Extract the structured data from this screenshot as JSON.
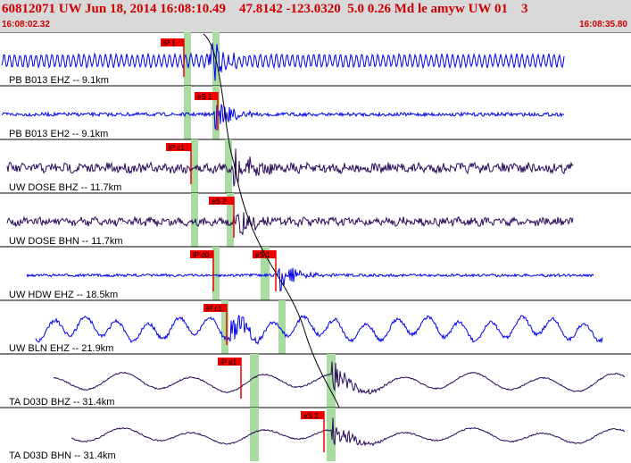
{
  "header": {
    "title": "60812071 UW Jun 18, 2014 16:08:10.49    47.8142 -123.0320  5.0 0.26 Md le amyw UW 01    3",
    "time_start": "16:08:02.32",
    "time_end": "16:08:35.80"
  },
  "colors": {
    "trace_blue": "#0000ee",
    "trace_dark": "#2a0a5a",
    "pick_red": "#ee0000",
    "window_green": "#a8dca0",
    "header_bg": "#d9d9d9",
    "header_text": "#cc0000"
  },
  "channels": [
    {
      "label": "PB B013 EHZ -- 9.1km",
      "color": "blue",
      "picks": [
        {
          "label": "iP 1"
        }
      ]
    },
    {
      "label": "PB B013 EH2 -- 9.1km",
      "color": "blue",
      "picks": [
        {
          "label": "eS 1"
        }
      ]
    },
    {
      "label": "UW DOSE BHZ -- 11.7km",
      "color": "dark",
      "picks": [
        {
          "label": "iP c1"
        }
      ]
    },
    {
      "label": "UW DOSE BHN -- 11.7km",
      "color": "dark",
      "picks": [
        {
          "label": "eS 2"
        }
      ]
    },
    {
      "label": "UW HDW EHZ -- 18.5km",
      "color": "blue",
      "picks": [
        {
          "label": "iP d0"
        },
        {
          "label": "eS 1"
        }
      ]
    },
    {
      "label": "UW BLN EHZ -- 21.9km",
      "color": "blue",
      "picks": [
        {
          "label": "iP c1"
        }
      ]
    },
    {
      "label": "TA D03D BHZ -- 31.4km",
      "color": "dark",
      "picks": [
        {
          "label": "iP d1"
        }
      ]
    },
    {
      "label": "TA D03D BHN -- 31.4km",
      "color": "dark",
      "picks": [
        {
          "label": "eS 2"
        }
      ]
    }
  ]
}
